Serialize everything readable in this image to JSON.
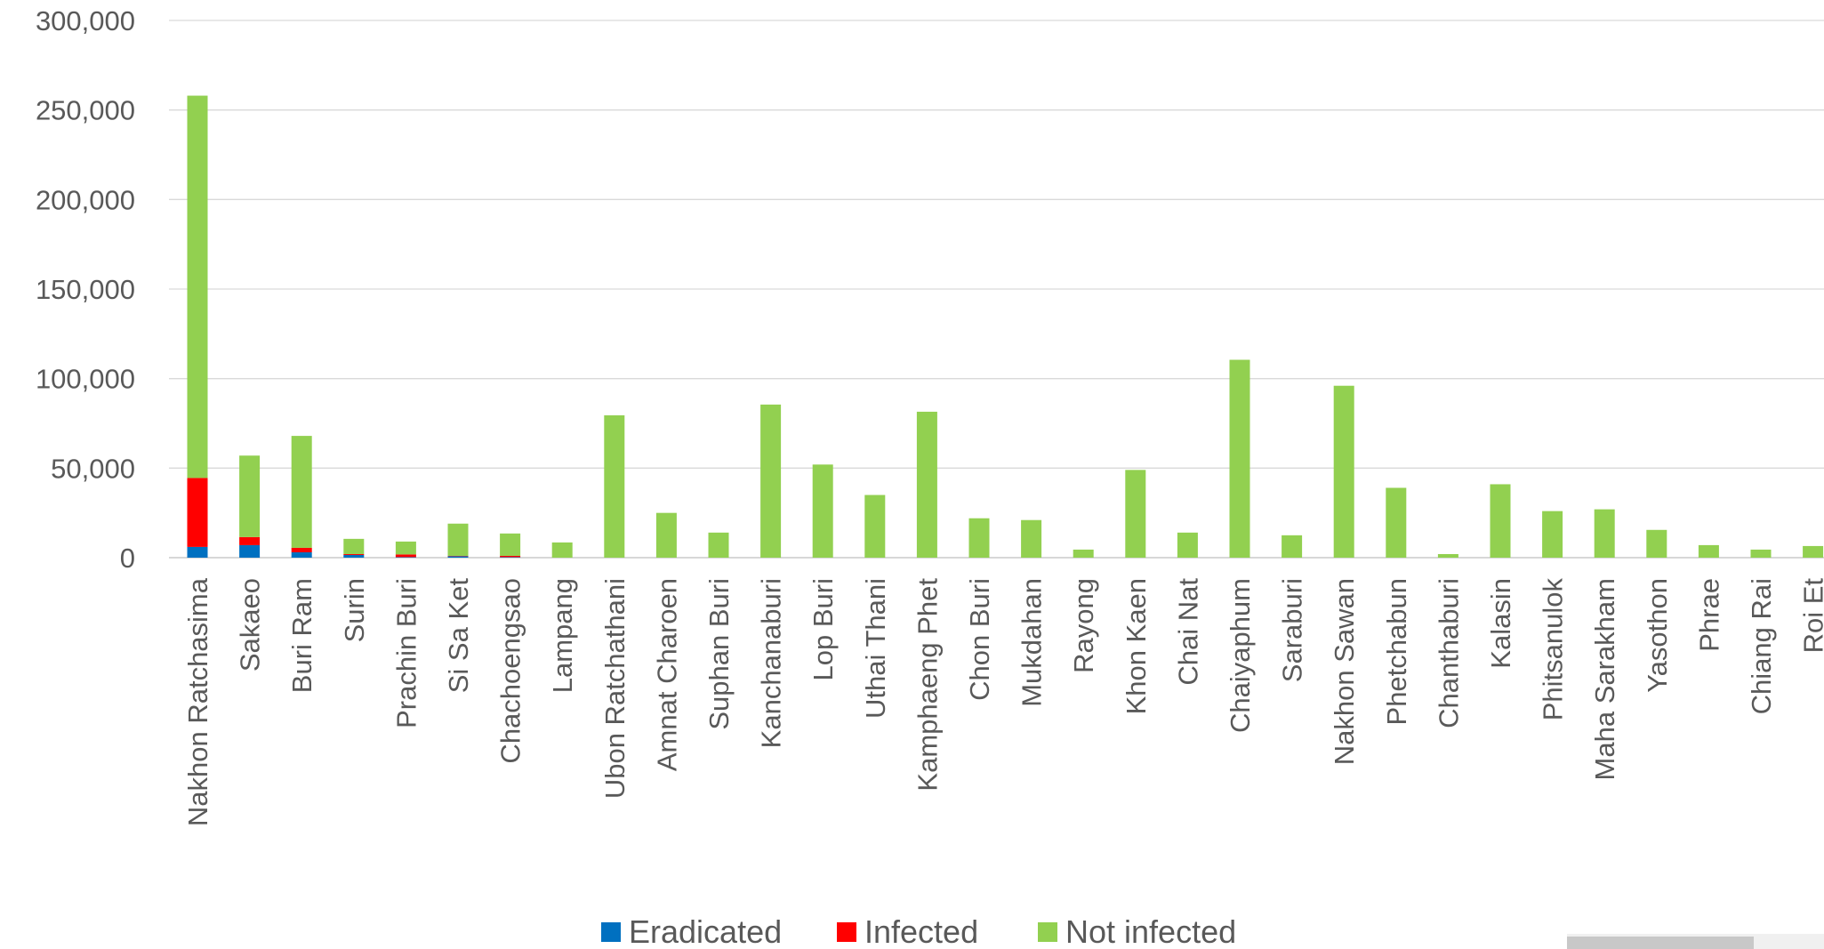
{
  "chart_data": {
    "type": "bar",
    "stacked": true,
    "title": "",
    "xlabel": "",
    "ylabel": "",
    "ylim": [
      0,
      300000
    ],
    "yticks": [
      0,
      50000,
      100000,
      150000,
      200000,
      250000,
      300000
    ],
    "ytick_labels": [
      "0",
      "50,000",
      "100,000",
      "150,000",
      "200,000",
      "250,000",
      "300,000"
    ],
    "grid": true,
    "legend_position": "bottom",
    "categories": [
      "Nakhon Ratchasima",
      "Sakaeo",
      "Buri Ram",
      "Surin",
      "Prachin Buri",
      "Si Sa Ket",
      "Chachoengsao",
      "Lampang",
      "Ubon Ratchathani",
      "Amnat Charoen",
      "Suphan Buri",
      "Kanchanaburi",
      "Lop Buri",
      "Uthai Thani",
      "Kamphaeng Phet",
      "Chon Buri",
      "Mukdahan",
      "Rayong",
      "Khon Kaen",
      "Chai Nat",
      "Chaiyaphum",
      "Saraburi",
      "Nakhon Sawan",
      "Phetchabun",
      "Chanthaburi",
      "Kalasin",
      "Phitsanulok",
      "Maha Sarakham",
      "Yasothon",
      "Phrae",
      "Chiang Rai",
      "Roi Et"
    ],
    "series": [
      {
        "name": "Eradicated",
        "color": "#0070C0",
        "values": [
          6000,
          7000,
          3000,
          1500,
          300,
          800,
          300,
          0,
          0,
          0,
          0,
          0,
          0,
          0,
          0,
          0,
          0,
          0,
          0,
          0,
          0,
          0,
          0,
          0,
          0,
          0,
          0,
          0,
          0,
          0,
          0,
          0
        ]
      },
      {
        "name": "Infected",
        "color": "#FF0000",
        "values": [
          38500,
          4500,
          2500,
          500,
          1500,
          200,
          700,
          0,
          0,
          0,
          0,
          0,
          0,
          0,
          0,
          0,
          0,
          0,
          0,
          0,
          0,
          0,
          0,
          0,
          0,
          0,
          0,
          0,
          0,
          0,
          0,
          0
        ]
      },
      {
        "name": "Not infected",
        "color": "#92D050",
        "values": [
          213500,
          45500,
          62500,
          8500,
          7200,
          18000,
          12500,
          8500,
          79500,
          25000,
          14000,
          85500,
          52000,
          35000,
          81500,
          22000,
          21000,
          4500,
          49000,
          14000,
          110500,
          12500,
          96000,
          39000,
          2000,
          41000,
          26000,
          27000,
          15500,
          7000,
          4500,
          6500
        ]
      }
    ]
  }
}
